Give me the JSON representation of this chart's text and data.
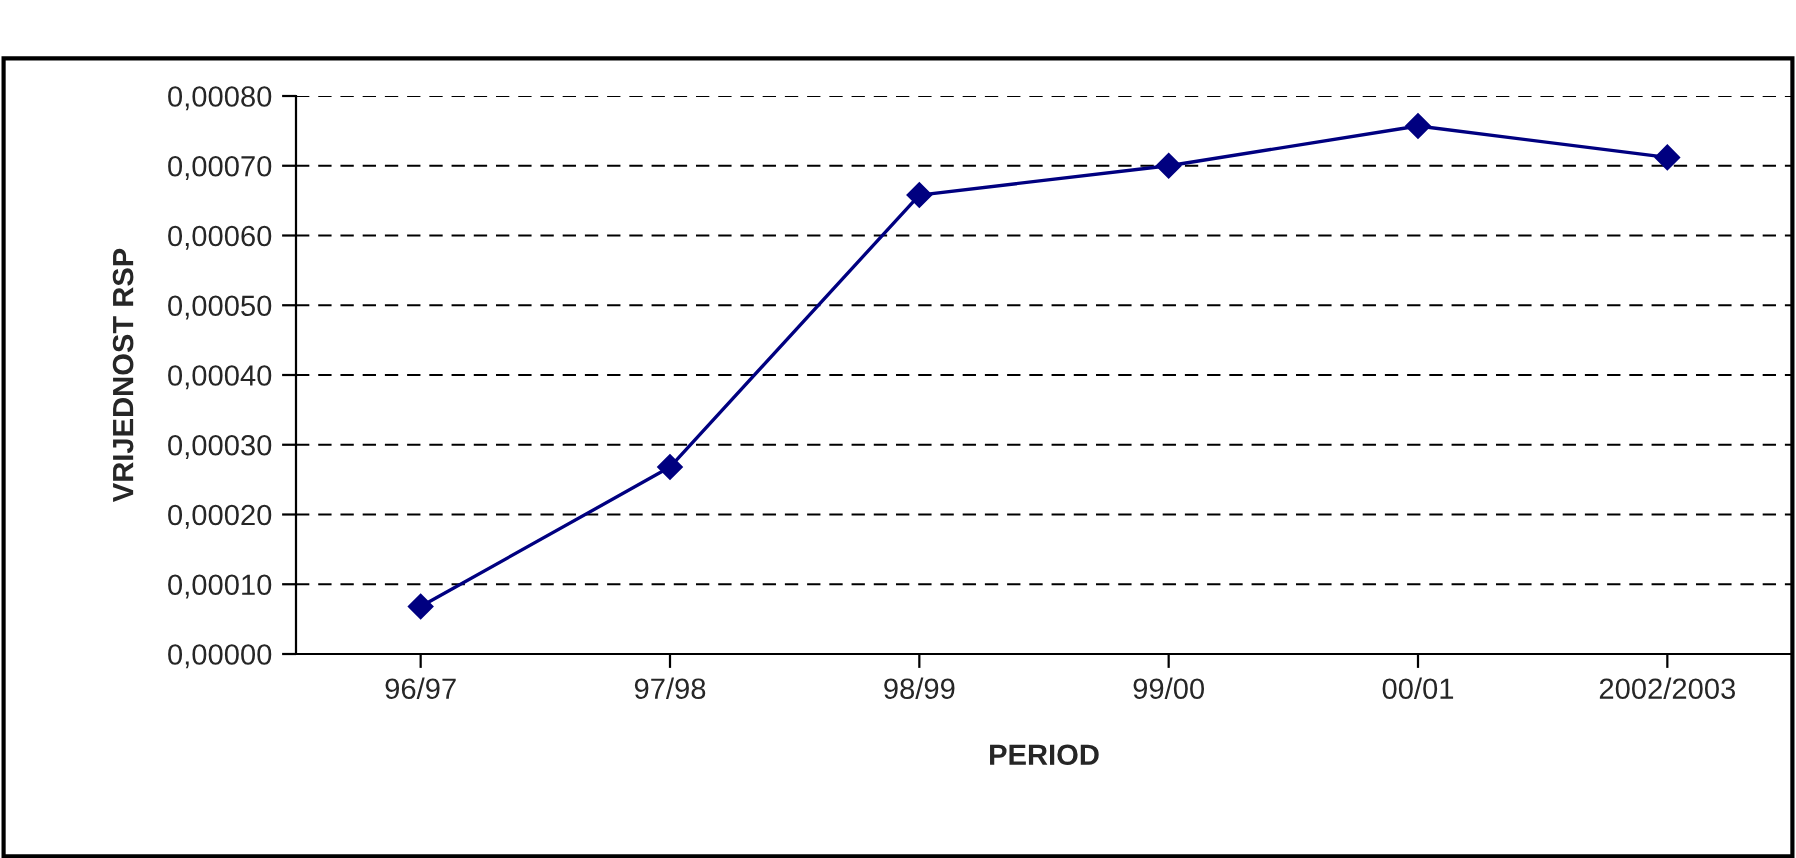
{
  "chart_data": {
    "type": "line",
    "xlabel": "PERIOD",
    "ylabel": "VRIJEDNOST RSP",
    "categories": [
      "96/97",
      "97/98",
      "98/99",
      "99/00",
      "00/01",
      "2002/2003"
    ],
    "series": [
      {
        "color": "#000080",
        "values": [
          6.8e-05,
          0.000268,
          0.000658,
          0.0007,
          0.000757,
          0.000712
        ]
      }
    ],
    "ylim": [
      0,
      0.0008
    ],
    "yticks": [
      {
        "value": 0,
        "label": "0,00000"
      },
      {
        "value": 0.0001,
        "label": "0,00010"
      },
      {
        "value": 0.0002,
        "label": "0,00020"
      },
      {
        "value": 0.0003,
        "label": "0,00030"
      },
      {
        "value": 0.0004,
        "label": "0,00040"
      },
      {
        "value": 0.0005,
        "label": "0,00050"
      },
      {
        "value": 0.0006,
        "label": "0,00060"
      },
      {
        "value": 0.0007,
        "label": "0,00070"
      },
      {
        "value": 0.0008,
        "label": "0,00080"
      }
    ],
    "grid": "y",
    "marker": "diamond",
    "line_style": "solid",
    "legend": false
  }
}
